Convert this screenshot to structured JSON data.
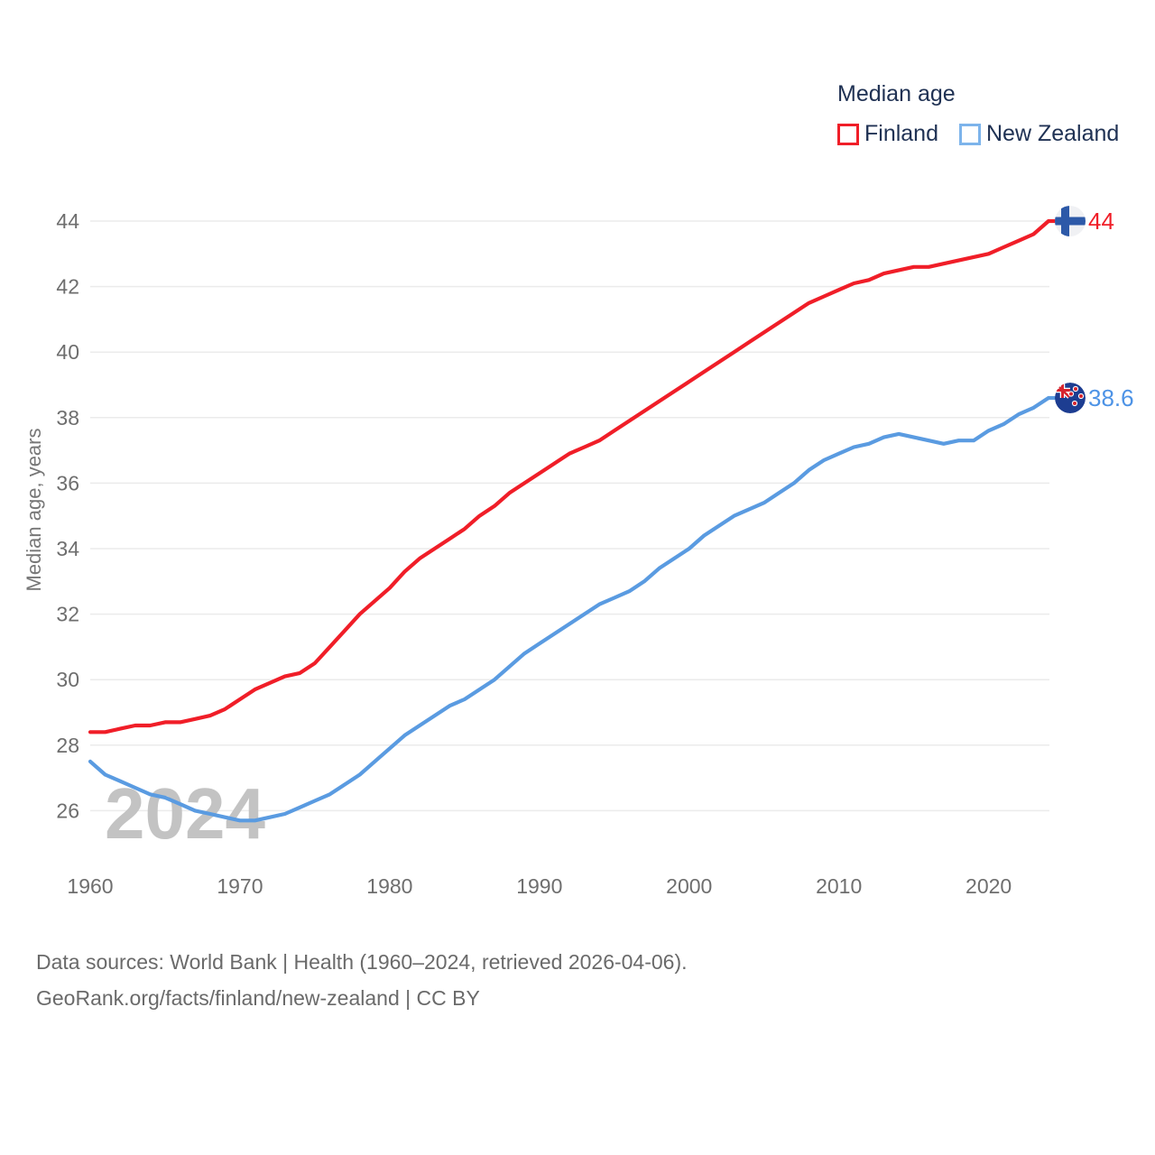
{
  "page": {
    "background": "#ffffff"
  },
  "legend": {
    "title": "Median age",
    "items": [
      {
        "label": "Finland",
        "swatch_border": "#f01e28"
      },
      {
        "label": "New Zealand",
        "swatch_border": "#7db4eb"
      }
    ]
  },
  "watermark": {
    "text": "2024",
    "color": "#c3c3c3"
  },
  "footer": {
    "line1": "Data sources: World Bank | Health (1960–2024, retrieved 2026-04-06).",
    "line2": "GeoRank.org/facts/finland/new-zealand | CC BY"
  },
  "chart_data": {
    "type": "line",
    "title": "Median age",
    "xlabel": "",
    "ylabel": "Median age, years",
    "grid": "horizontal",
    "legend_position": "top-right",
    "x_ticks": [
      1960,
      1970,
      1980,
      1990,
      2000,
      2010,
      2020
    ],
    "y_ticks": [
      26,
      28,
      30,
      32,
      34,
      36,
      38,
      40,
      42,
      44
    ],
    "ylim": [
      26,
      44
    ],
    "xlim": [
      1960,
      2024
    ],
    "x": [
      1960,
      1961,
      1962,
      1963,
      1964,
      1965,
      1966,
      1967,
      1968,
      1969,
      1970,
      1971,
      1972,
      1973,
      1974,
      1975,
      1976,
      1977,
      1978,
      1979,
      1980,
      1981,
      1982,
      1983,
      1984,
      1985,
      1986,
      1987,
      1988,
      1989,
      1990,
      1991,
      1992,
      1993,
      1994,
      1995,
      1996,
      1997,
      1998,
      1999,
      2000,
      2001,
      2002,
      2003,
      2004,
      2005,
      2006,
      2007,
      2008,
      2009,
      2010,
      2011,
      2012,
      2013,
      2014,
      2015,
      2016,
      2017,
      2018,
      2019,
      2020,
      2021,
      2022,
      2023,
      2024
    ],
    "series": [
      {
        "name": "Finland",
        "color": "#f01e28",
        "end_label": "44",
        "end_label_color": "#f01e28",
        "end_flag": "finland",
        "values": [
          28.4,
          28.4,
          28.5,
          28.6,
          28.6,
          28.7,
          28.7,
          28.8,
          28.9,
          29.1,
          29.4,
          29.7,
          29.9,
          30.1,
          30.2,
          30.5,
          31.0,
          31.5,
          32.0,
          32.4,
          32.8,
          33.3,
          33.7,
          34.0,
          34.3,
          34.6,
          35.0,
          35.3,
          35.7,
          36.0,
          36.3,
          36.6,
          36.9,
          37.1,
          37.3,
          37.6,
          37.9,
          38.2,
          38.5,
          38.8,
          39.1,
          39.4,
          39.7,
          40.0,
          40.3,
          40.6,
          40.9,
          41.2,
          41.5,
          41.7,
          41.9,
          42.1,
          42.2,
          42.4,
          42.5,
          42.6,
          42.6,
          42.7,
          42.8,
          42.9,
          43.0,
          43.2,
          43.4,
          43.6,
          44.0
        ]
      },
      {
        "name": "New Zealand",
        "color": "#5a9be1",
        "end_label": "38.6",
        "end_label_color": "#4d93e6",
        "end_flag": "new-zealand",
        "values": [
          27.5,
          27.1,
          26.9,
          26.7,
          26.5,
          26.4,
          26.2,
          26.0,
          25.9,
          25.8,
          25.7,
          25.7,
          25.8,
          25.9,
          26.1,
          26.3,
          26.5,
          26.8,
          27.1,
          27.5,
          27.9,
          28.3,
          28.6,
          28.9,
          29.2,
          29.4,
          29.7,
          30.0,
          30.4,
          30.8,
          31.1,
          31.4,
          31.7,
          32.0,
          32.3,
          32.5,
          32.7,
          33.0,
          33.4,
          33.7,
          34.0,
          34.4,
          34.7,
          35.0,
          35.2,
          35.4,
          35.7,
          36.0,
          36.4,
          36.7,
          36.9,
          37.1,
          37.2,
          37.4,
          37.5,
          37.4,
          37.3,
          37.2,
          37.3,
          37.3,
          37.6,
          37.8,
          38.1,
          38.3,
          38.6
        ]
      }
    ],
    "axis_colors": {
      "grid": "#ebebeb",
      "tick_label": "#6e6e6e",
      "axis_title": "#777777"
    }
  }
}
